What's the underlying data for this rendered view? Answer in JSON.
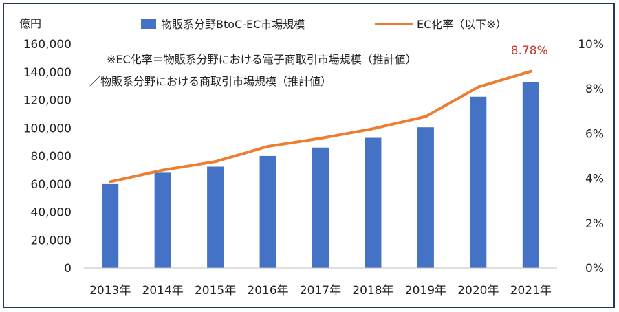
{
  "chart_data": {
    "type": "bar+line",
    "y_unit_label": "億円",
    "categories": [
      "2013年",
      "2014年",
      "2015年",
      "2016年",
      "2017年",
      "2018年",
      "2019年",
      "2020年",
      "2021年"
    ],
    "series": [
      {
        "name": "物販系分野BtoC-EC市場規模",
        "type": "bar",
        "axis": "left",
        "color": "#4472c4",
        "values": [
          59931,
          68043,
          72398,
          80043,
          86008,
          92992,
          100515,
          122333,
          132865
        ]
      },
      {
        "name": "EC化率（以下※）",
        "type": "line",
        "axis": "right",
        "color": "#ed7d31",
        "values": [
          3.85,
          4.37,
          4.75,
          5.43,
          5.79,
          6.22,
          6.76,
          8.08,
          8.78
        ]
      }
    ],
    "left_axis": {
      "min": 0,
      "max": 160000,
      "ticks": [
        "0",
        "20,000",
        "40,000",
        "60,000",
        "80,000",
        "100,000",
        "120,000",
        "140,000",
        "160,000"
      ]
    },
    "right_axis": {
      "min": 0,
      "max": 10,
      "ticks": [
        "0%",
        "2%",
        "4%",
        "6%",
        "8%",
        "10%"
      ]
    },
    "data_label": "8.78%",
    "note_line1": "※EC化率＝物販系分野における電子商取引市場規模（推計値）",
    "note_line2": "／物販系分野における商取引市場規模（推計値）",
    "gridlines": false,
    "legend_position": "top"
  }
}
